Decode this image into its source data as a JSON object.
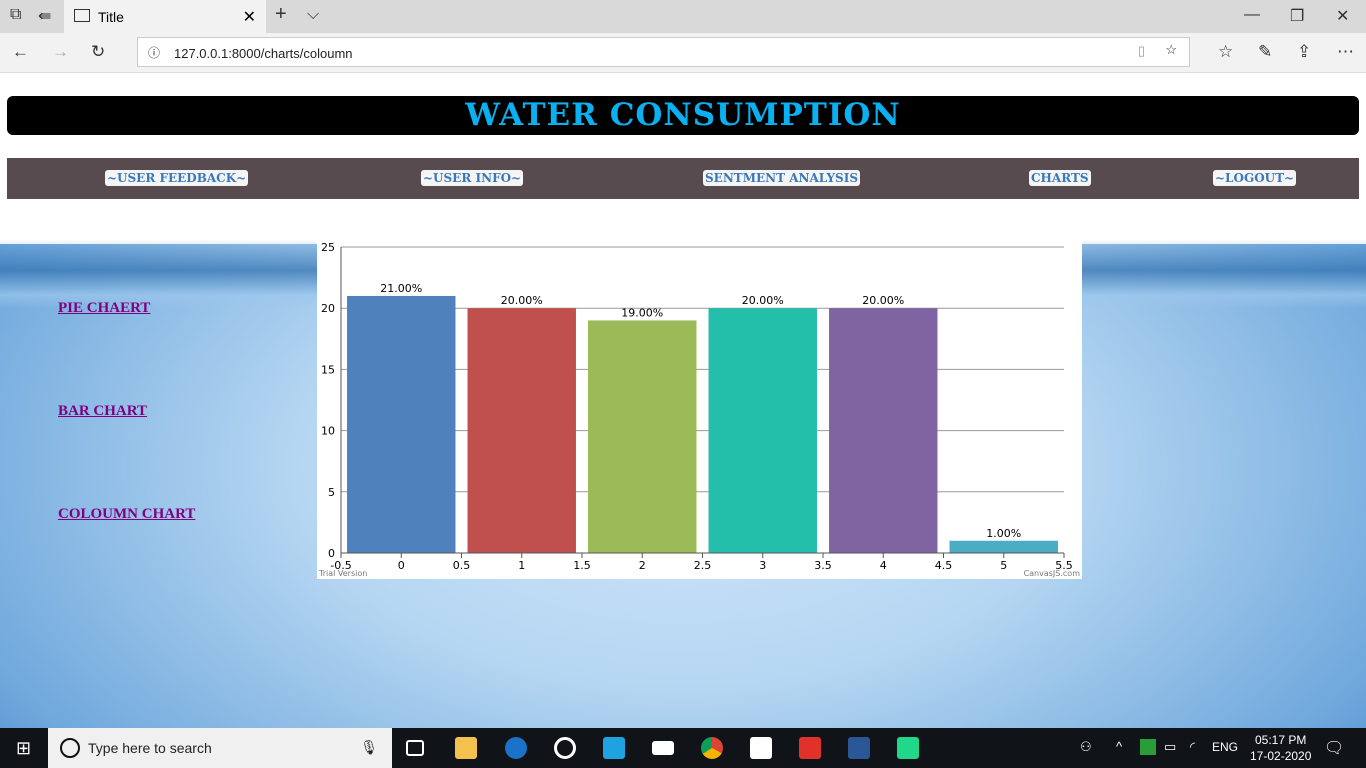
{
  "browser": {
    "tab_title": "Title",
    "url": "127.0.0.1:8000/charts/coloumn"
  },
  "page": {
    "title": "WATER CONSUMPTION",
    "nav": [
      "~USER FEEDBACK~",
      "~USER INFO~",
      "SENTMENT ANALYSIS",
      "CHARTS",
      "~LOGOUT~"
    ],
    "side_links": [
      "PIE CHAERT",
      "BAR CHART",
      "COLOUMN CHART"
    ]
  },
  "chart_data": {
    "type": "bar",
    "x": [
      0,
      1,
      2,
      3,
      4,
      5
    ],
    "values": [
      21,
      20,
      19,
      20,
      20,
      1
    ],
    "data_labels": [
      "21.00%",
      "20.00%",
      "19.00%",
      "20.00%",
      "20.00%",
      "1.00%"
    ],
    "colors": [
      "#4f81bc",
      "#c0504e",
      "#9bbb58",
      "#23bfaa",
      "#8064a1",
      "#4aacc5"
    ],
    "xlim": [
      -0.5,
      5.5
    ],
    "ylim": [
      0,
      25
    ],
    "xticks": [
      "-0.5",
      "0",
      "0.5",
      "1",
      "1.5",
      "2",
      "2.5",
      "3",
      "3.5",
      "4",
      "4.5",
      "5",
      "5.5"
    ],
    "yticks": [
      "0",
      "5",
      "10",
      "15",
      "20",
      "25"
    ],
    "grid": true,
    "watermark_left": "Trial Version",
    "watermark_right": "CanvasJS.com"
  },
  "taskbar": {
    "search_placeholder": "Type here to search",
    "lang": "ENG",
    "time": "05:17 PM",
    "date": "17-02-2020"
  }
}
